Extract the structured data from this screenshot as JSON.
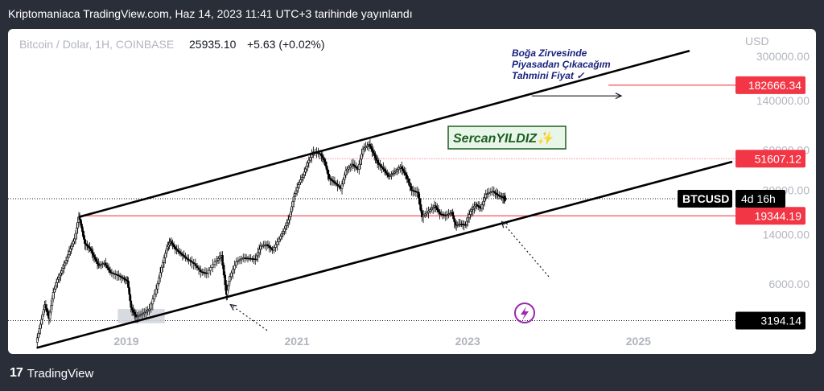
{
  "header": {
    "publish_line": "Kriptomaniaca TradingView.com, Haz 14, 2023 11:41 UTC+3 tarihinde yayınlandı"
  },
  "footer": {
    "brand": "TradingView",
    "logo_mark": "17"
  },
  "symbol_bar": {
    "name": "Bitcoin / Dolar, 1H, COINBASE",
    "price": "25935.10",
    "change": "+5.63 (+0.02%)"
  },
  "colors": {
    "background": "#2a2e39",
    "panel": "#ffffff",
    "candle": "#000000",
    "trendline": "#000000",
    "red_label": "#f23645",
    "red_line": "#f7525f",
    "annotation_text": "#1a237e",
    "watermark_box": "#e8f5e9",
    "watermark_text": "#1b5e20",
    "axis_text": "#b2b5be",
    "icon_purple": "#9c27b0"
  },
  "annotations": {
    "top_note_line1": "Boğa Zirvesinde",
    "top_note_line2": "Piyasadan Çıkacağım",
    "top_note_line3": "Tahmini Fiyat ✓",
    "watermark": "SercanYILDIZ✨"
  },
  "icons": {
    "lightning": "lightning-icon"
  },
  "chart_data": {
    "type": "candlestick",
    "title": "Bitcoin / Dolar, 1H, COINBASE",
    "y_axis": {
      "unit": "USD",
      "scale": "log",
      "tick_labels": [
        "300000.00",
        "140000.00",
        "60000.00",
        "30000.00",
        "14000.00",
        "6000.00"
      ],
      "ticks": [
        300000,
        140000,
        60000,
        30000,
        14000,
        6000
      ],
      "range": [
        1800,
        480000
      ]
    },
    "x_axis": {
      "tick_labels": [
        "2019",
        "2021",
        "2023",
        "2025"
      ],
      "ticks": [
        2019,
        2021,
        2023,
        2025
      ],
      "range": [
        2017.85,
        2026.1
      ]
    },
    "price_labels": [
      {
        "value": "USD",
        "kind": "unit"
      },
      {
        "value": "182666.34",
        "level": 182666.34,
        "kind": "red"
      },
      {
        "value": "51607.12",
        "level": 51607.12,
        "kind": "red"
      },
      {
        "value": "19344.19",
        "level": 19344.19,
        "kind": "red"
      },
      {
        "value": "3194.14",
        "level": 3194.14,
        "kind": "black"
      }
    ],
    "current_price_tag": {
      "symbol": "BTCUSD",
      "countdown": "4d 16h",
      "price": 25935.1
    },
    "price_series": [
      {
        "t": 2017.95,
        "p": 2200
      },
      {
        "t": 2018.0,
        "p": 3000
      },
      {
        "t": 2018.05,
        "p": 4200
      },
      {
        "t": 2018.1,
        "p": 3300
      },
      {
        "t": 2018.15,
        "p": 5200
      },
      {
        "t": 2018.2,
        "p": 6500
      },
      {
        "t": 2018.25,
        "p": 7500
      },
      {
        "t": 2018.3,
        "p": 9000
      },
      {
        "t": 2018.35,
        "p": 11000
      },
      {
        "t": 2018.4,
        "p": 13000
      },
      {
        "t": 2018.45,
        "p": 19000
      },
      {
        "t": 2018.48,
        "p": 16000
      },
      {
        "t": 2018.52,
        "p": 12000
      },
      {
        "t": 2018.58,
        "p": 11000
      },
      {
        "t": 2018.63,
        "p": 9500
      },
      {
        "t": 2018.68,
        "p": 8200
      },
      {
        "t": 2018.75,
        "p": 8600
      },
      {
        "t": 2018.82,
        "p": 7300
      },
      {
        "t": 2018.9,
        "p": 7000
      },
      {
        "t": 2018.97,
        "p": 6600
      },
      {
        "t": 2019.02,
        "p": 6300
      },
      {
        "t": 2019.06,
        "p": 4000
      },
      {
        "t": 2019.12,
        "p": 3400
      },
      {
        "t": 2019.2,
        "p": 3600
      },
      {
        "t": 2019.28,
        "p": 3900
      },
      {
        "t": 2019.36,
        "p": 5500
      },
      {
        "t": 2019.42,
        "p": 8000
      },
      {
        "t": 2019.48,
        "p": 11000
      },
      {
        "t": 2019.52,
        "p": 12500
      },
      {
        "t": 2019.58,
        "p": 11000
      },
      {
        "t": 2019.65,
        "p": 10000
      },
      {
        "t": 2019.72,
        "p": 9200
      },
      {
        "t": 2019.8,
        "p": 8500
      },
      {
        "t": 2019.88,
        "p": 7400
      },
      {
        "t": 2019.95,
        "p": 7200
      },
      {
        "t": 2020.05,
        "p": 8800
      },
      {
        "t": 2020.12,
        "p": 9800
      },
      {
        "t": 2020.18,
        "p": 5000
      },
      {
        "t": 2020.22,
        "p": 6800
      },
      {
        "t": 2020.3,
        "p": 8800
      },
      {
        "t": 2020.38,
        "p": 9400
      },
      {
        "t": 2020.45,
        "p": 9300
      },
      {
        "t": 2020.52,
        "p": 9200
      },
      {
        "t": 2020.58,
        "p": 11500
      },
      {
        "t": 2020.65,
        "p": 11800
      },
      {
        "t": 2020.72,
        "p": 10700
      },
      {
        "t": 2020.8,
        "p": 13000
      },
      {
        "t": 2020.86,
        "p": 15500
      },
      {
        "t": 2020.92,
        "p": 19000
      },
      {
        "t": 2020.97,
        "p": 27000
      },
      {
        "t": 2021.02,
        "p": 33000
      },
      {
        "t": 2021.08,
        "p": 39000
      },
      {
        "t": 2021.13,
        "p": 48000
      },
      {
        "t": 2021.2,
        "p": 58000
      },
      {
        "t": 2021.28,
        "p": 56000
      },
      {
        "t": 2021.33,
        "p": 49000
      },
      {
        "t": 2021.38,
        "p": 37000
      },
      {
        "t": 2021.45,
        "p": 34000
      },
      {
        "t": 2021.52,
        "p": 31000
      },
      {
        "t": 2021.58,
        "p": 42000
      },
      {
        "t": 2021.65,
        "p": 47000
      },
      {
        "t": 2021.72,
        "p": 43000
      },
      {
        "t": 2021.78,
        "p": 61000
      },
      {
        "t": 2021.85,
        "p": 66000
      },
      {
        "t": 2021.9,
        "p": 57000
      },
      {
        "t": 2021.95,
        "p": 48000
      },
      {
        "t": 2022.02,
        "p": 43000
      },
      {
        "t": 2022.08,
        "p": 38000
      },
      {
        "t": 2022.15,
        "p": 41000
      },
      {
        "t": 2022.22,
        "p": 45000
      },
      {
        "t": 2022.28,
        "p": 39000
      },
      {
        "t": 2022.35,
        "p": 30000
      },
      {
        "t": 2022.42,
        "p": 29000
      },
      {
        "t": 2022.47,
        "p": 19000
      },
      {
        "t": 2022.55,
        "p": 21000
      },
      {
        "t": 2022.62,
        "p": 23000
      },
      {
        "t": 2022.68,
        "p": 20000
      },
      {
        "t": 2022.75,
        "p": 19500
      },
      {
        "t": 2022.82,
        "p": 20500
      },
      {
        "t": 2022.86,
        "p": 16500
      },
      {
        "t": 2022.92,
        "p": 16800
      },
      {
        "t": 2022.98,
        "p": 16600
      },
      {
        "t": 2023.04,
        "p": 21000
      },
      {
        "t": 2023.1,
        "p": 23500
      },
      {
        "t": 2023.16,
        "p": 22000
      },
      {
        "t": 2023.22,
        "p": 28000
      },
      {
        "t": 2023.3,
        "p": 29500
      },
      {
        "t": 2023.36,
        "p": 27500
      },
      {
        "t": 2023.42,
        "p": 26500
      },
      {
        "t": 2023.45,
        "p": 25935
      }
    ],
    "trendlines": [
      {
        "name": "upper-channel",
        "from": {
          "t": 2018.45,
          "p": 19000
        },
        "to": {
          "t": 2025.6,
          "p": 330000
        }
      },
      {
        "name": "lower-channel",
        "from": {
          "t": 2017.95,
          "p": 2000
        },
        "to": {
          "t": 2026.1,
          "p": 49000
        }
      }
    ],
    "arrows": [
      {
        "name": "target-arrow",
        "from": {
          "t": 2023.75,
          "p": 152000
        },
        "to": {
          "t": 2024.8,
          "p": 152000
        }
      },
      {
        "name": "covid-low-arrow",
        "from": {
          "t": 2020.65,
          "p": 2700
        },
        "to": {
          "t": 2020.22,
          "p": 4200
        }
      },
      {
        "name": "current-support-arrow",
        "from": {
          "t": 2023.95,
          "p": 6800
        },
        "to": {
          "t": 2023.4,
          "p": 17500
        }
      }
    ],
    "highlight_box": {
      "from": {
        "t": 2018.9,
        "p": 3900
      },
      "to": {
        "t": 2019.45,
        "p": 3050
      }
    }
  }
}
